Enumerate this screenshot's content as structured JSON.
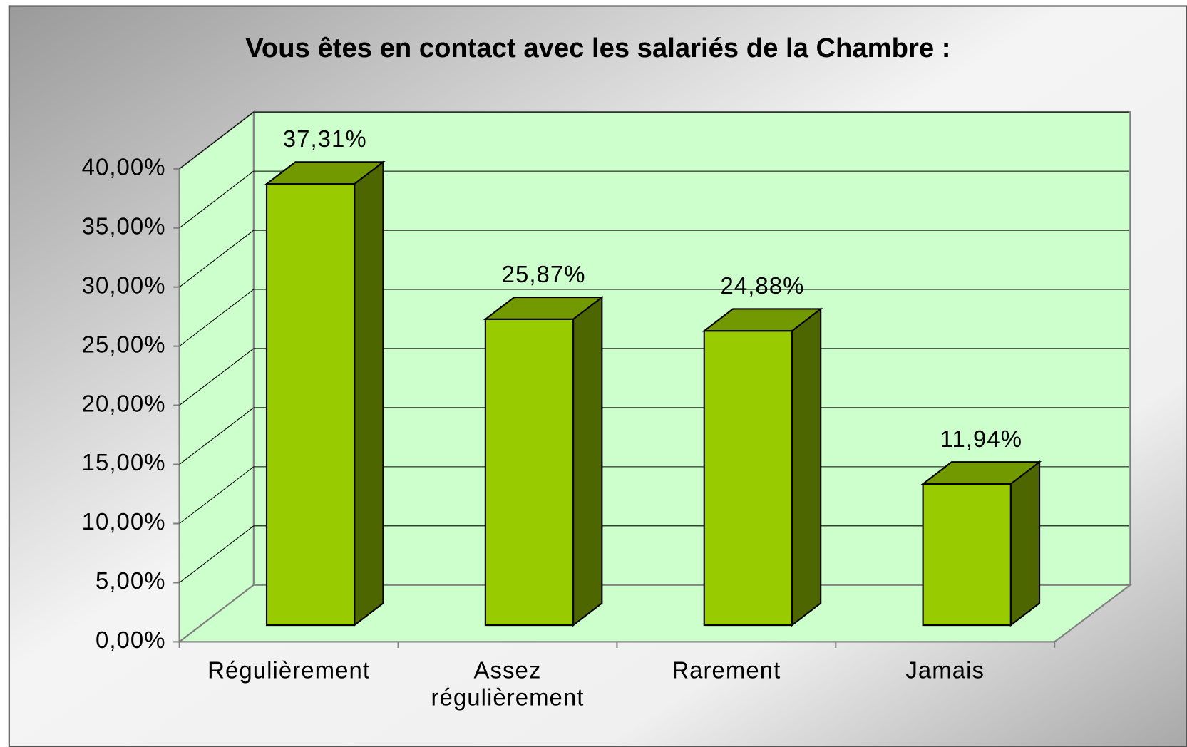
{
  "chart_data": {
    "type": "bar3d",
    "title": "Vous êtes en contact avec les salariés de la Chambre :",
    "categories": [
      "Régulièrement",
      "Assez régulièrement",
      "Rarement",
      "Jamais"
    ],
    "values": [
      37.31,
      25.87,
      24.88,
      11.94
    ],
    "value_labels": [
      "37,31%",
      "25,87%",
      "24,88%",
      "11,94%"
    ],
    "color": "#99cc00",
    "ylim": [
      0,
      40
    ],
    "yticks": [
      {
        "value": 0,
        "label": "0,00%"
      },
      {
        "value": 5,
        "label": "5,00%"
      },
      {
        "value": 10,
        "label": "10,00%"
      },
      {
        "value": 15,
        "label": "15,00%"
      },
      {
        "value": 20,
        "label": "20,00%"
      },
      {
        "value": 25,
        "label": "25,00%"
      },
      {
        "value": 30,
        "label": "30,00%"
      },
      {
        "value": 35,
        "label": "35,00%"
      },
      {
        "value": 40,
        "label": "40,00%"
      }
    ],
    "grid": true
  }
}
